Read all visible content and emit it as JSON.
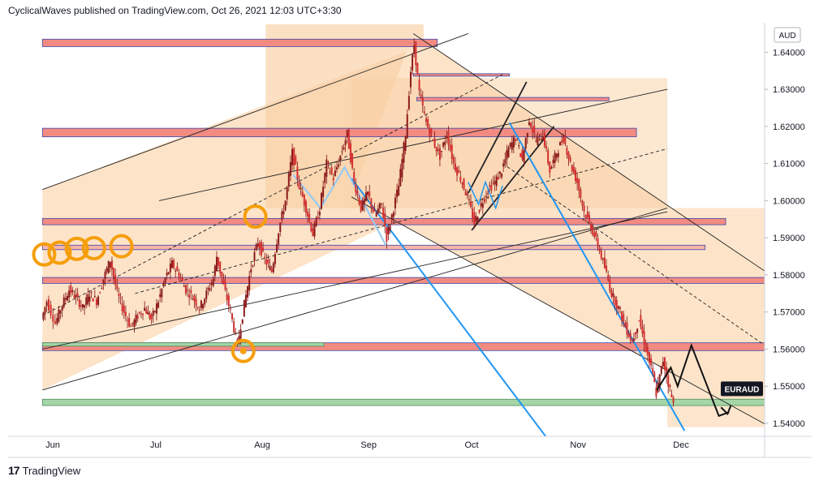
{
  "header": {
    "text": "CyclicalWaves published on TradingView.com, Oct 26, 2021 12:03 UTC+3:30"
  },
  "footer": {
    "logo_text": "TradingView"
  },
  "chart_data": {
    "type": "candlestick",
    "symbol": "EURAUD",
    "currency": "AUD",
    "x_ticks": [
      "Jun",
      "Jul",
      "Aug",
      "Sep",
      "Oct",
      "Nov",
      "Dec"
    ],
    "y_ticks": [
      "1.64000",
      "1.63000",
      "1.62000",
      "1.61000",
      "1.60000",
      "1.59000",
      "1.58000",
      "1.57000",
      "1.56000",
      "1.55000",
      "1.54000"
    ],
    "ylim": [
      1.5365,
      1.6475
    ],
    "grid": false,
    "last_price_label": "EURAUD",
    "price_path": [
      [
        -3,
        1.568
      ],
      [
        -1.5,
        1.573
      ],
      [
        1,
        1.567
      ],
      [
        3,
        1.572
      ],
      [
        5,
        1.576
      ],
      [
        7,
        1.574
      ],
      [
        9,
        1.571
      ],
      [
        11,
        1.575
      ],
      [
        13,
        1.573
      ],
      [
        15,
        1.579
      ],
      [
        17,
        1.584
      ],
      [
        19,
        1.575
      ],
      [
        21,
        1.57
      ],
      [
        23,
        1.566
      ],
      [
        25,
        1.569
      ],
      [
        27,
        1.571
      ],
      [
        29,
        1.568
      ],
      [
        31,
        1.573
      ],
      [
        33,
        1.579
      ],
      [
        35,
        1.583
      ],
      [
        37,
        1.58
      ],
      [
        39,
        1.576
      ],
      [
        41,
        1.574
      ],
      [
        43,
        1.571
      ],
      [
        45,
        1.575
      ],
      [
        47,
        1.579
      ],
      [
        48,
        1.585
      ],
      [
        50,
        1.577
      ],
      [
        52,
        1.57
      ],
      [
        54,
        1.561
      ],
      [
        56,
        1.572
      ],
      [
        58,
        1.582
      ],
      [
        60,
        1.589
      ],
      [
        62,
        1.584
      ],
      [
        64,
        1.581
      ],
      [
        66,
        1.592
      ],
      [
        68,
        1.6
      ],
      [
        70,
        1.613
      ],
      [
        72,
        1.604
      ],
      [
        74,
        1.598
      ],
      [
        76,
        1.591
      ],
      [
        78,
        1.598
      ],
      [
        80,
        1.61
      ],
      [
        82,
        1.606
      ],
      [
        84,
        1.612
      ],
      [
        86,
        1.618
      ],
      [
        88,
        1.605
      ],
      [
        90,
        1.598
      ],
      [
        92,
        1.602
      ],
      [
        94,
        1.596
      ],
      [
        96,
        1.599
      ],
      [
        97.5,
        1.59
      ],
      [
        99,
        1.596
      ],
      [
        101,
        1.604
      ],
      [
        103,
        1.618
      ],
      [
        104.5,
        1.635
      ],
      [
        105.5,
        1.642
      ],
      [
        107,
        1.629
      ],
      [
        109,
        1.621
      ],
      [
        111,
        1.616
      ],
      [
        113,
        1.612
      ],
      [
        115,
        1.618
      ],
      [
        117,
        1.61
      ],
      [
        119,
        1.606
      ],
      [
        121,
        1.601
      ],
      [
        123,
        1.594
      ],
      [
        125,
        1.599
      ],
      [
        127,
        1.603
      ],
      [
        129,
        1.605
      ],
      [
        131,
        1.608
      ],
      [
        133,
        1.614
      ],
      [
        135,
        1.617
      ],
      [
        137,
        1.611
      ],
      [
        139,
        1.622
      ],
      [
        141,
        1.616
      ],
      [
        143,
        1.618
      ],
      [
        145,
        1.608
      ],
      [
        147,
        1.613
      ],
      [
        149,
        1.617
      ],
      [
        151,
        1.61
      ],
      [
        153,
        1.605
      ],
      [
        155,
        1.597
      ],
      [
        157,
        1.593
      ],
      [
        159,
        1.588
      ],
      [
        161,
        1.582
      ],
      [
        163,
        1.575
      ],
      [
        165,
        1.571
      ],
      [
        167,
        1.566
      ],
      [
        169,
        1.562
      ],
      [
        171,
        1.568
      ],
      [
        173,
        1.56
      ],
      [
        175,
        1.553
      ],
      [
        176,
        1.548
      ],
      [
        178,
        1.557
      ],
      [
        180,
        1.549
      ],
      [
        181,
        1.545
      ]
    ],
    "drawings": {
      "ascending_channel": {
        "upper": [
          [
            -3,
            1.603
          ],
          [
            121,
            1.645
          ]
        ],
        "lower": [
          [
            -3,
            1.549
          ],
          [
            179,
            1.598
          ]
        ],
        "upper2": [
          [
            31,
            1.6
          ],
          [
            179,
            1.63
          ]
        ],
        "midline_dashed": [
          [
            -3,
            1.569
          ],
          [
            131,
            1.634
          ]
        ],
        "midline2_dashed": [
          [
            24,
            1.575
          ],
          [
            179,
            1.614
          ]
        ],
        "lower_inner": [
          [
            -3,
            1.56
          ],
          [
            179,
            1.597
          ]
        ]
      },
      "descending_channel": {
        "upper": [
          [
            105,
            1.645
          ],
          [
            209,
            1.58
          ]
        ],
        "lower": [
          [
            87,
            1.601
          ],
          [
            209,
            1.539
          ]
        ],
        "mid_dashed": [
          [
            131,
            1.61
          ],
          [
            209,
            1.56
          ]
        ]
      },
      "rising_wedge": {
        "lower": [
          [
            122,
            1.592
          ],
          [
            146,
            1.62
          ]
        ],
        "upper": [
          [
            121,
            1.602
          ],
          [
            138,
            1.632
          ]
        ]
      },
      "blue_lines": [
        {
          "points": [
            [
              133,
              1.621
            ],
            [
              184,
              1.538
            ]
          ],
          "color": "#2196f3"
        },
        {
          "points": [
            [
              87,
              1.606
            ],
            [
              146,
              1.5335
            ]
          ],
          "color": "#2196f3"
        },
        {
          "points": [
            [
              70,
              1.607
            ],
            [
              78,
              1.598
            ],
            [
              85,
              1.609
            ],
            [
              97,
              1.588
            ]
          ],
          "color": "#90caf9"
        }
      ],
      "blue_zigzag": [
        [
          121,
          1.605
        ],
        [
          124,
          1.599
        ],
        [
          126,
          1.605
        ],
        [
          129,
          1.598
        ],
        [
          131,
          1.604
        ]
      ],
      "projection": [
        [
          176,
          1.549
        ],
        [
          180,
          1.555
        ],
        [
          182,
          1.55
        ],
        [
          186,
          1.561
        ],
        [
          194,
          1.542
        ],
        [
          197,
          1.543
        ]
      ],
      "zones": [
        {
          "y1": 1.6415,
          "y2": 1.6435,
          "x1": -3,
          "x2": 112,
          "color": "#f28b82"
        },
        {
          "y1": 1.6195,
          "y2": 1.6172,
          "x1": -3,
          "x2": 170,
          "color": "#f28b82"
        },
        {
          "y1": 1.5952,
          "y2": 1.5935,
          "x1": -3,
          "x2": 196,
          "color": "#f28b82"
        },
        {
          "y1": 1.588,
          "y2": 1.5868,
          "x1": -3,
          "x2": 190,
          "color": "#f8b4a8"
        },
        {
          "y1": 1.5793,
          "y2": 1.5777,
          "x1": -3,
          "x2": 230,
          "color": "#f28b82"
        },
        {
          "y1": 1.5617,
          "y2": 1.5596,
          "x1": -3,
          "x2": 217,
          "color": "#f28b82"
        },
        {
          "y1": 1.5617,
          "y2": 1.5608,
          "x1": -3,
          "x2": 79,
          "color": "#a5d6a7"
        },
        {
          "y1": 1.5465,
          "y2": 1.5448,
          "x1": -3,
          "x2": 219,
          "color": "#a5d6a7"
        },
        {
          "y1": 1.6342,
          "y2": 1.6336,
          "x1": 105,
          "x2": 133,
          "color": "#f28b82"
        },
        {
          "y1": 1.6278,
          "y2": 1.6269,
          "x1": 106,
          "x2": 162,
          "color": "#f28b82"
        }
      ],
      "cycle_markers": [
        {
          "x": 55.5,
          "y": 1.5595,
          "kind": "target-circle"
        },
        {
          "x": 59,
          "y": 1.5957,
          "kind": "open-circle"
        },
        {
          "x": 20,
          "y": 1.5877,
          "kind": "open-circle"
        },
        {
          "x": 12,
          "y": 1.5872,
          "kind": "open-circle"
        },
        {
          "x": 7,
          "y": 1.587,
          "kind": "open-circle"
        },
        {
          "x": 2,
          "y": 1.586,
          "kind": "open-circle"
        },
        {
          "x": -2.5,
          "y": 1.5855,
          "kind": "open-circle"
        }
      ]
    }
  },
  "colors": {
    "bg_shade": "#fde3c8",
    "bg_shade_dark": "#f9cfa4",
    "zone_red": "#f28b82",
    "zone_green": "#a5d6a7",
    "candles": "#d32f2f",
    "cycle": "#f59e0b",
    "axis_text": "#131722"
  }
}
